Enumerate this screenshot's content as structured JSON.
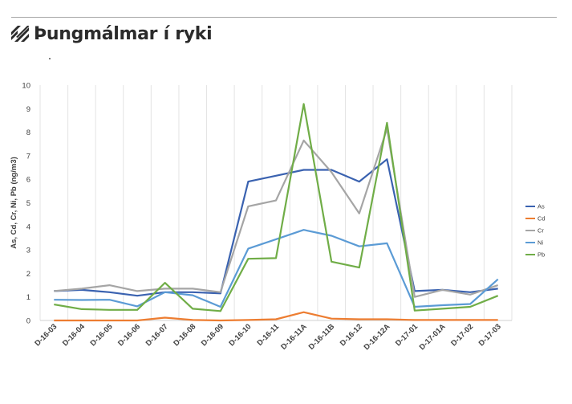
{
  "header": {
    "title": "Þungmálmar í ryki"
  },
  "chart_data": {
    "type": "line",
    "ylabel": "As, Cd, Cr, Ni, Pb (ng/m3)",
    "xlabel": "",
    "ylim": [
      0,
      10
    ],
    "yticks": [
      0,
      1,
      2,
      3,
      4,
      5,
      6,
      7,
      8,
      9,
      10
    ],
    "grid": "vertical",
    "legend_position": "right",
    "categories": [
      "D-16-03",
      "D-16-04",
      "D-16-05",
      "D-16-06",
      "D-16-07",
      "D-16-08",
      "D-16-09",
      "D-16-10",
      "D-16-11",
      "D-16-11A",
      "D-16-11B",
      "D-16-12",
      "D-16-12A",
      "D-17-01",
      "D-17-01A",
      "D-17-02",
      "D-17-03"
    ],
    "series": [
      {
        "name": "As",
        "color": "#3a62b0",
        "values": [
          1.25,
          1.3,
          1.2,
          1.05,
          1.2,
          1.2,
          1.15,
          5.9,
          6.15,
          6.4,
          6.4,
          5.9,
          6.85,
          1.25,
          1.3,
          1.2,
          1.35
        ]
      },
      {
        "name": "Cd",
        "color": "#ed7d31",
        "values": [
          0.0,
          0.0,
          0.0,
          0.0,
          0.12,
          0.02,
          0.0,
          0.02,
          0.05,
          0.35,
          0.08,
          0.05,
          0.05,
          0.02,
          0.02,
          0.02,
          0.02
        ]
      },
      {
        "name": "Cr",
        "color": "#a5a5a5",
        "values": [
          1.25,
          1.35,
          1.5,
          1.25,
          1.35,
          1.35,
          1.2,
          4.85,
          5.1,
          7.65,
          6.3,
          4.55,
          8.15,
          1.0,
          1.3,
          1.1,
          1.5
        ]
      },
      {
        "name": "Ni",
        "color": "#5b9bd5",
        "values": [
          0.88,
          0.87,
          0.88,
          0.6,
          1.2,
          1.07,
          0.58,
          3.05,
          3.45,
          3.85,
          3.6,
          3.15,
          3.28,
          0.58,
          0.65,
          0.7,
          1.75
        ]
      },
      {
        "name": "Pb",
        "color": "#70ad47",
        "values": [
          0.68,
          0.48,
          0.45,
          0.45,
          1.6,
          0.5,
          0.4,
          2.62,
          2.65,
          9.2,
          2.5,
          2.25,
          8.4,
          0.42,
          0.5,
          0.58,
          1.05
        ]
      }
    ]
  }
}
